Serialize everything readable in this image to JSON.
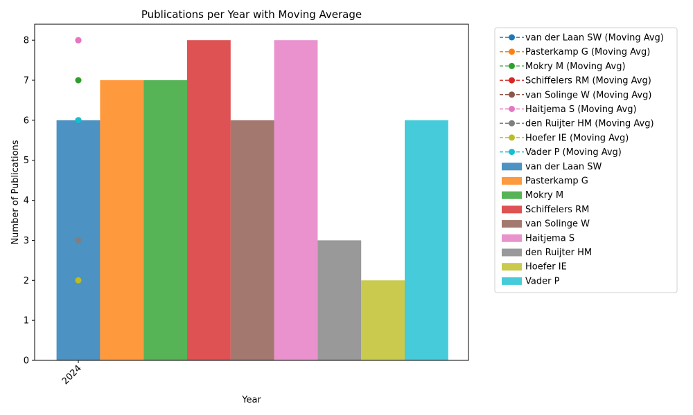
{
  "chart_data": {
    "type": "bar",
    "title": "Publications per Year with Moving Average",
    "xlabel": "Year",
    "ylabel": "Number of Publications",
    "categories": [
      "2024"
    ],
    "ylim": [
      0,
      8.4
    ],
    "yticks": [
      "0",
      "1",
      "2",
      "3",
      "4",
      "5",
      "6",
      "7",
      "8"
    ],
    "legend_position": "outside-upper-right",
    "grid": false,
    "series": [
      {
        "name": "van der Laan SW",
        "line_label": "van der Laan SW (Moving Avg)",
        "values": [
          6
        ],
        "moving_avg": [
          6
        ],
        "color": "#1f77b4"
      },
      {
        "name": "Pasterkamp G",
        "line_label": "Pasterkamp G (Moving Avg)",
        "values": [
          7
        ],
        "moving_avg": [
          7
        ],
        "color": "#ff7f0e"
      },
      {
        "name": "Mokry M",
        "line_label": "Mokry M (Moving Avg)",
        "values": [
          7
        ],
        "moving_avg": [
          7
        ],
        "color": "#2ca02c"
      },
      {
        "name": "Schiffelers RM",
        "line_label": "Schiffelers RM (Moving Avg)",
        "values": [
          8
        ],
        "moving_avg": [
          8
        ],
        "color": "#d62728"
      },
      {
        "name": "van Solinge W",
        "line_label": "van Solinge W (Moving Avg)",
        "values": [
          6
        ],
        "moving_avg": [
          6
        ],
        "color": "#8c564b"
      },
      {
        "name": "Haitjema S",
        "line_label": "Haitjema S (Moving Avg)",
        "values": [
          8
        ],
        "moving_avg": [
          8
        ],
        "color": "#e377c2"
      },
      {
        "name": "den Ruijter HM",
        "line_label": "den Ruijter HM (Moving Avg)",
        "values": [
          3
        ],
        "moving_avg": [
          3
        ],
        "color": "#7f7f7f"
      },
      {
        "name": "Hoefer IE",
        "line_label": "Hoefer IE (Moving Avg)",
        "values": [
          2
        ],
        "moving_avg": [
          2
        ],
        "color": "#bcbd22"
      },
      {
        "name": "Vader P",
        "line_label": "Vader P (Moving Avg)",
        "values": [
          6
        ],
        "moving_avg": [
          6
        ],
        "color": "#17becf"
      }
    ]
  }
}
